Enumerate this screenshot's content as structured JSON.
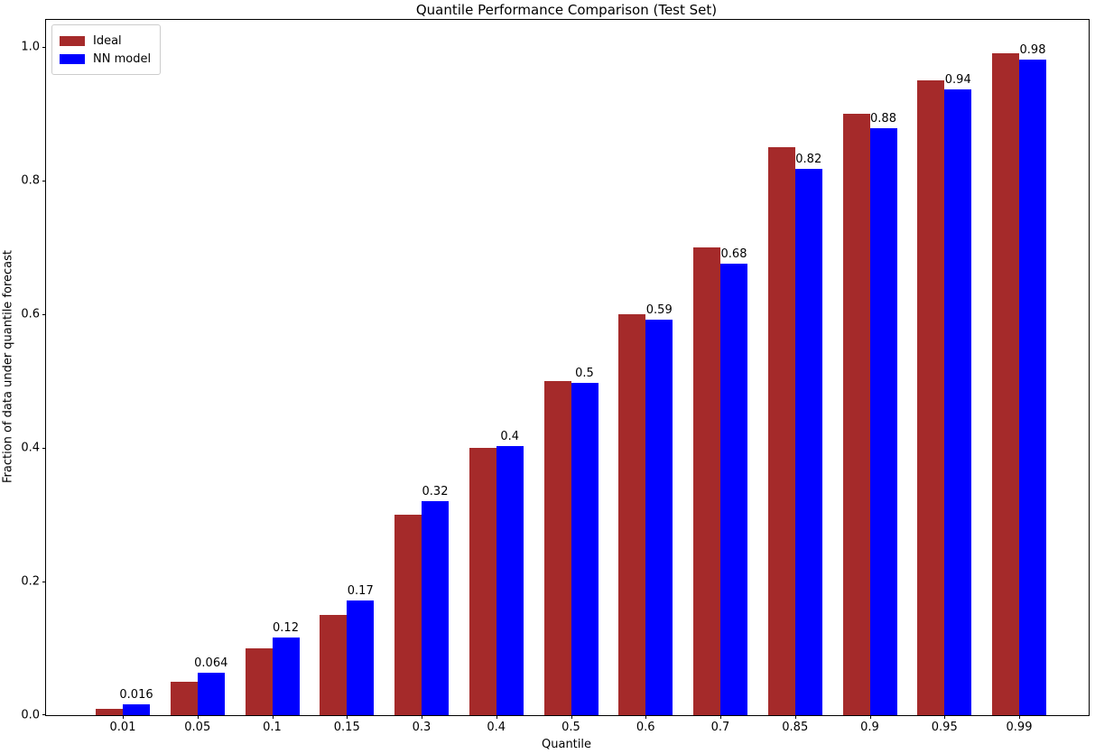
{
  "chart_data": {
    "type": "bar",
    "title": "Quantile Performance Comparison (Test Set)",
    "xlabel": "Quantile",
    "ylabel": "Fraction of data under quantile forecast",
    "categories": [
      "0.01",
      "0.05",
      "0.1",
      "0.15",
      "0.3",
      "0.4",
      "0.5",
      "0.6",
      "0.7",
      "0.85",
      "0.9",
      "0.95",
      "0.99"
    ],
    "series": [
      {
        "name": "Ideal",
        "color": "#A52A2A",
        "values": [
          0.01,
          0.05,
          0.1,
          0.15,
          0.3,
          0.4,
          0.5,
          0.6,
          0.7,
          0.85,
          0.9,
          0.95,
          0.99
        ]
      },
      {
        "name": "NN model",
        "color": "#0000FF",
        "values": [
          0.016,
          0.064,
          0.116,
          0.172,
          0.32,
          0.403,
          0.497,
          0.592,
          0.676,
          0.818,
          0.878,
          0.936,
          0.981
        ],
        "bar_labels": [
          "0.016",
          "0.064",
          "0.12",
          "0.17",
          "0.32",
          "0.4",
          "0.5",
          "0.59",
          "0.68",
          "0.82",
          "0.88",
          "0.94",
          "0.98"
        ]
      }
    ],
    "yticks": [
      "0.0",
      "0.2",
      "0.4",
      "0.6",
      "0.8",
      "1.0"
    ],
    "ylim": [
      0,
      1.04
    ],
    "grid": false,
    "legend": {
      "position": "upper-left",
      "entries": [
        "Ideal",
        "NN model"
      ]
    },
    "colors": {
      "axes": "#000000",
      "background": "#ffffff",
      "legend_border": "#cccccc"
    }
  }
}
